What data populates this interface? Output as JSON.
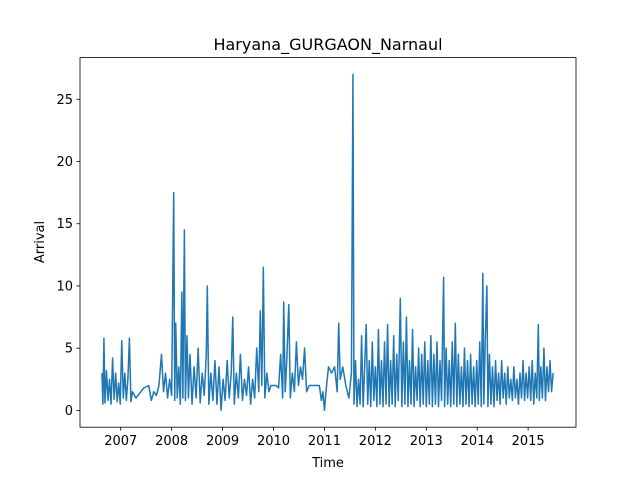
{
  "chart_data": {
    "type": "line",
    "title": "Haryana_GURGAON_Narnaul",
    "x_label": "Time",
    "y_label": "Arrival",
    "x": [
      2006.63,
      2006.65,
      2006.67,
      2006.69,
      2006.72,
      2006.75,
      2006.78,
      2006.81,
      2006.84,
      2006.87,
      2006.9,
      2006.93,
      2006.96,
      2006.99,
      2007.02,
      2007.05,
      2007.08,
      2007.11,
      2007.14,
      2007.17,
      2007.2,
      2007.23,
      2007.3,
      2007.45,
      2007.55,
      2007.6,
      2007.65,
      2007.7,
      2007.75,
      2007.8,
      2007.84,
      2007.88,
      2007.92,
      2007.96,
      2008.0,
      2008.04,
      2008.06,
      2008.08,
      2008.11,
      2008.14,
      2008.17,
      2008.2,
      2008.22,
      2008.25,
      2008.27,
      2008.3,
      2008.33,
      2008.36,
      2008.4,
      2008.44,
      2008.48,
      2008.52,
      2008.56,
      2008.6,
      2008.64,
      2008.68,
      2008.7,
      2008.73,
      2008.77,
      2008.81,
      2008.85,
      2008.89,
      2008.93,
      2008.97,
      2009.01,
      2009.05,
      2009.09,
      2009.13,
      2009.17,
      2009.2,
      2009.23,
      2009.27,
      2009.31,
      2009.35,
      2009.39,
      2009.43,
      2009.47,
      2009.51,
      2009.55,
      2009.59,
      2009.63,
      2009.67,
      2009.71,
      2009.74,
      2009.77,
      2009.8,
      2009.83,
      2009.87,
      2009.91,
      2009.95,
      2010.0,
      2010.05,
      2010.1,
      2010.14,
      2010.18,
      2010.2,
      2010.23,
      2010.26,
      2010.3,
      2010.33,
      2010.37,
      2010.41,
      2010.45,
      2010.49,
      2010.53,
      2010.57,
      2010.61,
      2010.65,
      2010.7,
      2010.8,
      2010.9,
      2010.94,
      2010.97,
      2011.0,
      2011.03,
      2011.08,
      2011.14,
      2011.2,
      2011.25,
      2011.28,
      2011.31,
      2011.36,
      2011.42,
      2011.48,
      2011.53,
      2011.56,
      2011.58,
      2011.61,
      2011.64,
      2011.67,
      2011.7,
      2011.73,
      2011.76,
      2011.79,
      2011.82,
      2011.85,
      2011.88,
      2011.91,
      2011.94,
      2011.97,
      2012.0,
      2012.03,
      2012.06,
      2012.09,
      2012.12,
      2012.15,
      2012.18,
      2012.21,
      2012.24,
      2012.27,
      2012.3,
      2012.33,
      2012.36,
      2012.39,
      2012.42,
      2012.45,
      2012.49,
      2012.52,
      2012.55,
      2012.58,
      2012.61,
      2012.64,
      2012.67,
      2012.7,
      2012.73,
      2012.76,
      2012.79,
      2012.82,
      2012.85,
      2012.88,
      2012.91,
      2012.94,
      2012.97,
      2013.0,
      2013.03,
      2013.06,
      2013.09,
      2013.12,
      2013.15,
      2013.18,
      2013.21,
      2013.24,
      2013.27,
      2013.3,
      2013.34,
      2013.36,
      2013.39,
      2013.42,
      2013.45,
      2013.48,
      2013.51,
      2013.54,
      2013.57,
      2013.6,
      2013.63,
      2013.66,
      2013.69,
      2013.72,
      2013.75,
      2013.78,
      2013.81,
      2013.84,
      2013.87,
      2013.9,
      2013.93,
      2013.96,
      2013.99,
      2014.02,
      2014.05,
      2014.08,
      2014.11,
      2014.13,
      2014.16,
      2014.19,
      2014.21,
      2014.24,
      2014.27,
      2014.3,
      2014.33,
      2014.36,
      2014.39,
      2014.42,
      2014.45,
      2014.48,
      2014.51,
      2014.54,
      2014.57,
      2014.6,
      2014.63,
      2014.66,
      2014.69,
      2014.72,
      2014.75,
      2014.78,
      2014.81,
      2014.84,
      2014.87,
      2014.9,
      2014.93,
      2014.96,
      2014.99,
      2015.02,
      2015.05,
      2015.08,
      2015.11,
      2015.14,
      2015.17,
      2015.2,
      2015.22,
      2015.25,
      2015.28,
      2015.31,
      2015.34,
      2015.37,
      2015.4,
      2015.43,
      2015.46,
      2015.49
    ],
    "series": [
      {
        "name": "Arrival",
        "color": "#1f77b4",
        "values": [
          3.0,
          0.5,
          5.8,
          0.6,
          3.2,
          0.8,
          2.5,
          0.5,
          4.2,
          0.9,
          3.0,
          0.7,
          2.2,
          0.5,
          5.6,
          1.0,
          3.0,
          0.8,
          2.5,
          5.8,
          0.7,
          1.5,
          1.0,
          1.8,
          2.0,
          0.8,
          1.5,
          1.2,
          2.0,
          4.5,
          1.5,
          3.0,
          1.0,
          2.5,
          1.2,
          17.5,
          0.8,
          7.0,
          1.0,
          3.5,
          0.5,
          9.5,
          1.0,
          14.5,
          0.8,
          6.0,
          1.0,
          4.5,
          0.5,
          3.5,
          1.0,
          5.0,
          0.6,
          3.0,
          1.2,
          4.5,
          10.0,
          0.5,
          3.0,
          0.8,
          4.0,
          0.5,
          3.5,
          0.0,
          2.5,
          0.8,
          4.0,
          1.0,
          3.0,
          7.5,
          0.5,
          3.0,
          1.0,
          4.5,
          0.8,
          2.5,
          1.2,
          3.5,
          0.5,
          2.5,
          1.0,
          5.0,
          1.5,
          8.0,
          2.0,
          11.5,
          1.0,
          3.0,
          1.5,
          2.0,
          2.0,
          2.0,
          1.8,
          4.5,
          1.0,
          8.7,
          1.5,
          4.0,
          8.5,
          1.0,
          3.0,
          1.5,
          5.5,
          2.0,
          3.5,
          2.5,
          5.0,
          1.5,
          2.0,
          2.0,
          2.0,
          0.8,
          1.5,
          0.0,
          1.5,
          3.5,
          3.0,
          3.5,
          1.5,
          7.0,
          2.5,
          3.5,
          2.0,
          1.0,
          3.0,
          27.0,
          0.5,
          4.0,
          0.3,
          2.5,
          0.5,
          6.0,
          0.3,
          3.5,
          6.9,
          0.5,
          4.0,
          0.3,
          5.5,
          0.8,
          3.5,
          0.3,
          6.5,
          0.5,
          4.0,
          0.3,
          5.5,
          0.5,
          6.9,
          0.3,
          4.0,
          0.5,
          6.0,
          0.3,
          4.5,
          0.8,
          9.0,
          0.3,
          5.5,
          0.5,
          7.5,
          0.3,
          4.0,
          0.5,
          6.5,
          0.3,
          3.5,
          0.8,
          5.0,
          0.3,
          4.5,
          0.5,
          5.5,
          0.3,
          4.0,
          0.5,
          6.0,
          0.3,
          4.5,
          0.5,
          5.5,
          0.3,
          4.0,
          0.8,
          10.7,
          0.3,
          5.0,
          0.5,
          4.0,
          0.3,
          5.5,
          0.5,
          7.0,
          0.3,
          4.5,
          0.5,
          3.5,
          0.3,
          5.0,
          0.5,
          4.0,
          0.3,
          4.5,
          0.5,
          3.5,
          0.3,
          4.0,
          0.5,
          5.5,
          0.3,
          11.0,
          0.5,
          6.0,
          10.0,
          0.3,
          4.5,
          0.5,
          3.5,
          0.3,
          4.0,
          0.8,
          3.0,
          0.5,
          4.0,
          1.0,
          3.0,
          0.5,
          3.5,
          1.0,
          2.5,
          0.8,
          3.5,
          1.0,
          2.5,
          0.5,
          3.0,
          1.0,
          4.0,
          0.8,
          3.0,
          1.0,
          3.5,
          0.8,
          4.0,
          0.5,
          3.0,
          1.0,
          6.9,
          0.8,
          3.5,
          1.0,
          5.0,
          0.8,
          3.5,
          1.5,
          4.0,
          1.5,
          3.0
        ]
      }
    ],
    "xlim": [
      2006.2,
      2015.94
    ],
    "ylim": [
      -1.35,
      28.35
    ],
    "xticks": [
      2007,
      2008,
      2009,
      2010,
      2011,
      2012,
      2013,
      2014,
      2015
    ],
    "yticks": [
      0,
      5,
      10,
      15,
      20,
      25
    ],
    "grid": false
  }
}
